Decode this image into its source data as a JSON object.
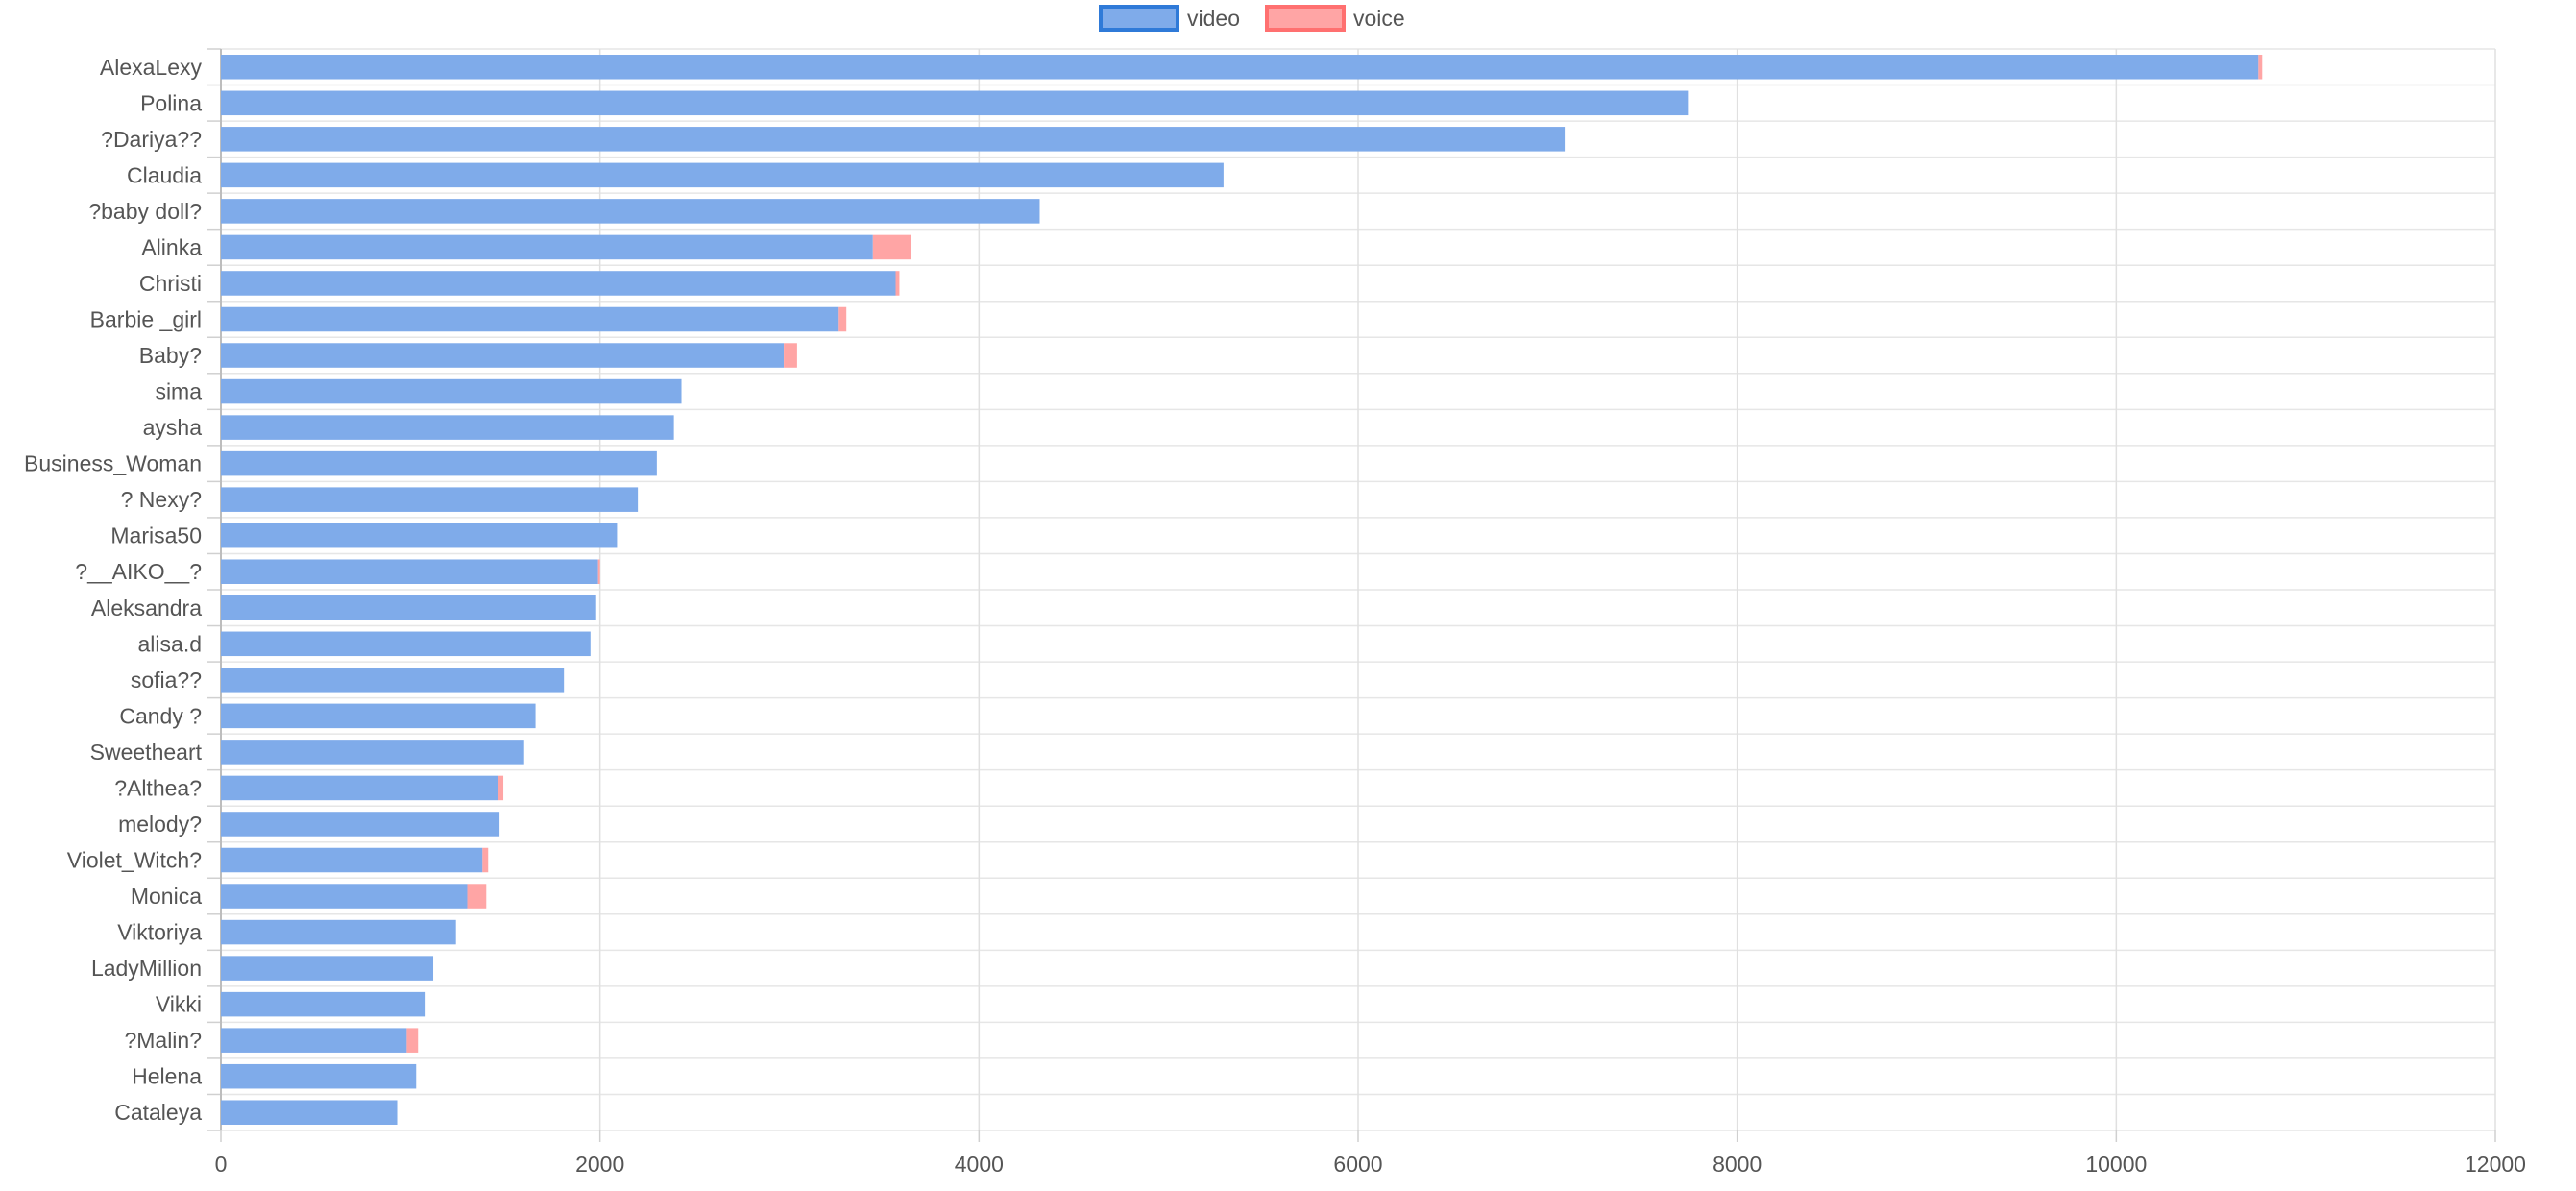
{
  "chart_data": {
    "type": "bar",
    "orientation": "horizontal",
    "stacked": true,
    "categories": [
      "AlexaLexy",
      "Polina",
      "?Dariya??",
      "Claudia",
      "?baby doll?",
      "Alinka",
      "Christi",
      "Barbie _girl",
      "Baby?",
      "sima",
      "aysha",
      "Business_Woman",
      "? Nexy?",
      "Marisa50",
      "?__AIKO__?",
      "Aleksandra",
      "alisa.d",
      "sofia??",
      "Candy ?",
      "Sweetheart",
      "?Althea?",
      "melody?",
      "Violet_Witch?",
      "Monica",
      "Viktoriya",
      "LadyMillion",
      "Vikki",
      "?Malin?",
      "Helena",
      "Cataleya"
    ],
    "series": [
      {
        "name": "video",
        "color": "#7fabea",
        "border": "#2f7ad8",
        "values": [
          10750,
          7740,
          7090,
          5290,
          4320,
          3440,
          3560,
          3260,
          2970,
          2430,
          2390,
          2300,
          2200,
          2090,
          1990,
          1980,
          1950,
          1810,
          1660,
          1600,
          1460,
          1470,
          1380,
          1300,
          1240,
          1120,
          1080,
          980,
          1030,
          930
        ]
      },
      {
        "name": "voice",
        "color": "#ffa5a5",
        "border": "#ff7070",
        "values": [
          20,
          0,
          0,
          0,
          0,
          200,
          20,
          40,
          70,
          0,
          0,
          0,
          0,
          0,
          10,
          0,
          0,
          0,
          0,
          0,
          30,
          0,
          30,
          100,
          0,
          0,
          0,
          60,
          0,
          0
        ]
      }
    ],
    "xlim": [
      0,
      12000
    ],
    "xticks": [
      0,
      2000,
      4000,
      6000,
      8000,
      10000,
      12000
    ],
    "grid": true,
    "legend": "top-center",
    "title": "",
    "xlabel": "",
    "ylabel": ""
  }
}
